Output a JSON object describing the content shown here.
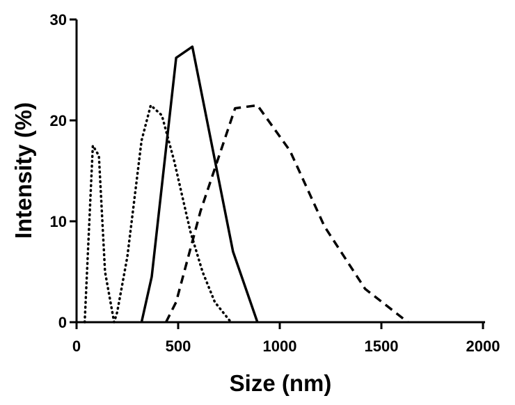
{
  "chart_data": {
    "type": "line",
    "title": "",
    "xlabel": "Size (nm)",
    "ylabel": "Intensity (%)",
    "xlim": [
      0,
      2000
    ],
    "ylim": [
      0,
      30
    ],
    "xticks": [
      0,
      500,
      1000,
      1500,
      2000
    ],
    "yticks": [
      0,
      10,
      20,
      30
    ],
    "xtick_labels": [
      "0",
      "500",
      "1000",
      "1500",
      "2000"
    ],
    "ytick_labels": [
      "0",
      "10",
      "20",
      "30"
    ],
    "grid": false,
    "legend": "none",
    "series": [
      {
        "style": "dotted",
        "x": [
          40,
          80,
          110,
          140,
          185,
          200,
          250,
          320,
          365,
          420,
          480,
          560,
          620,
          680,
          760
        ],
        "y": [
          0,
          17.5,
          16.5,
          5,
          0,
          1,
          6.5,
          18,
          21.5,
          20.5,
          16,
          9,
          5,
          2,
          0
        ]
      },
      {
        "style": "solid",
        "x": [
          320,
          370,
          490,
          570,
          770,
          890
        ],
        "y": [
          0,
          4.5,
          26.2,
          27.3,
          7,
          0
        ]
      },
      {
        "style": "dashed",
        "x": [
          440,
          490,
          610,
          780,
          890,
          1050,
          1220,
          1420,
          1630
        ],
        "y": [
          0,
          2,
          11,
          21.2,
          21.5,
          17,
          9.5,
          3.3,
          0
        ]
      }
    ]
  }
}
